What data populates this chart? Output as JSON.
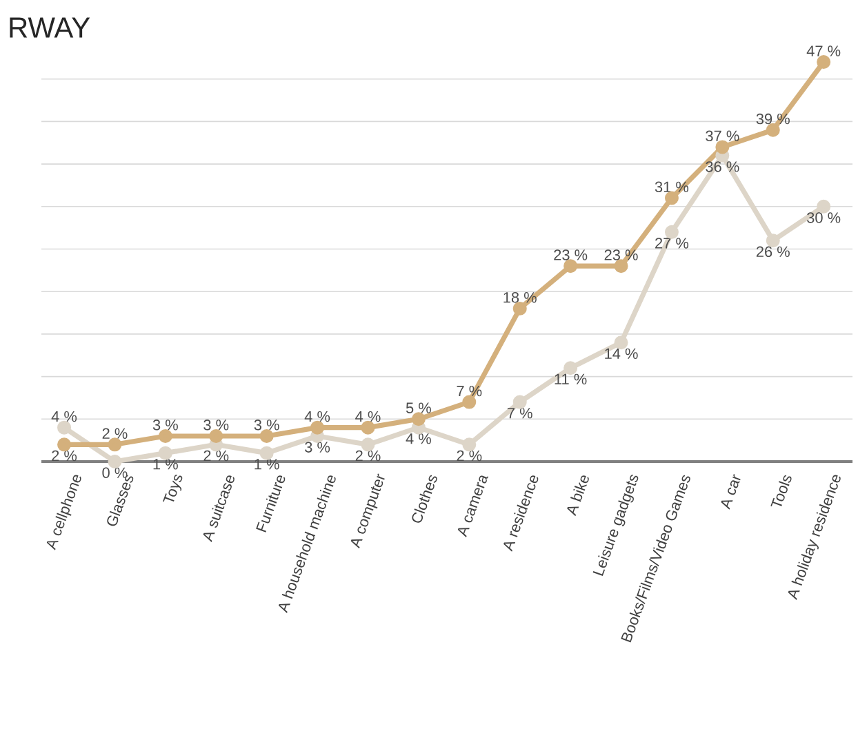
{
  "chart_data": {
    "type": "line",
    "title": "RWAY",
    "categories": [
      "A cellphone",
      "Glasses",
      "Toys",
      "A suitcase",
      "Furniture",
      "A household machine",
      "A computer",
      "Clothes",
      "A camera",
      "A residence",
      "A bike",
      "Leisure gadgets",
      "Books/Films/Video Games",
      "A car",
      "Tools",
      "A holiday residence"
    ],
    "series": [
      {
        "color": "#d4b07c",
        "values": [
          2,
          2,
          3,
          3,
          3,
          4,
          4,
          5,
          7,
          18,
          23,
          23,
          31,
          37,
          39,
          47
        ],
        "value_labels": [
          "2 %",
          "2 %",
          "3 %",
          "3 %",
          "3 %",
          "4 %",
          "4 %",
          "5 %",
          "7 %",
          "18 %",
          "23 %",
          "23 %",
          "31 %",
          "37 %",
          "39 %",
          "47 %"
        ]
      },
      {
        "color": "#ddd5c8",
        "values": [
          4,
          0,
          1,
          2,
          1,
          3,
          2,
          4,
          2,
          7,
          11,
          14,
          27,
          36,
          26,
          30
        ],
        "value_labels": [
          "4 %",
          "0 %",
          "1 %",
          "2 %",
          "1 %",
          "3 %",
          "2 %",
          "4 %",
          "2 %",
          "7 %",
          "11 %",
          "14 %",
          "27 %",
          "36 %",
          "26 %",
          "30 %"
        ]
      }
    ],
    "grid": "y",
    "tick_labels": "x",
    "marker": "circle",
    "line_style": "solid"
  }
}
